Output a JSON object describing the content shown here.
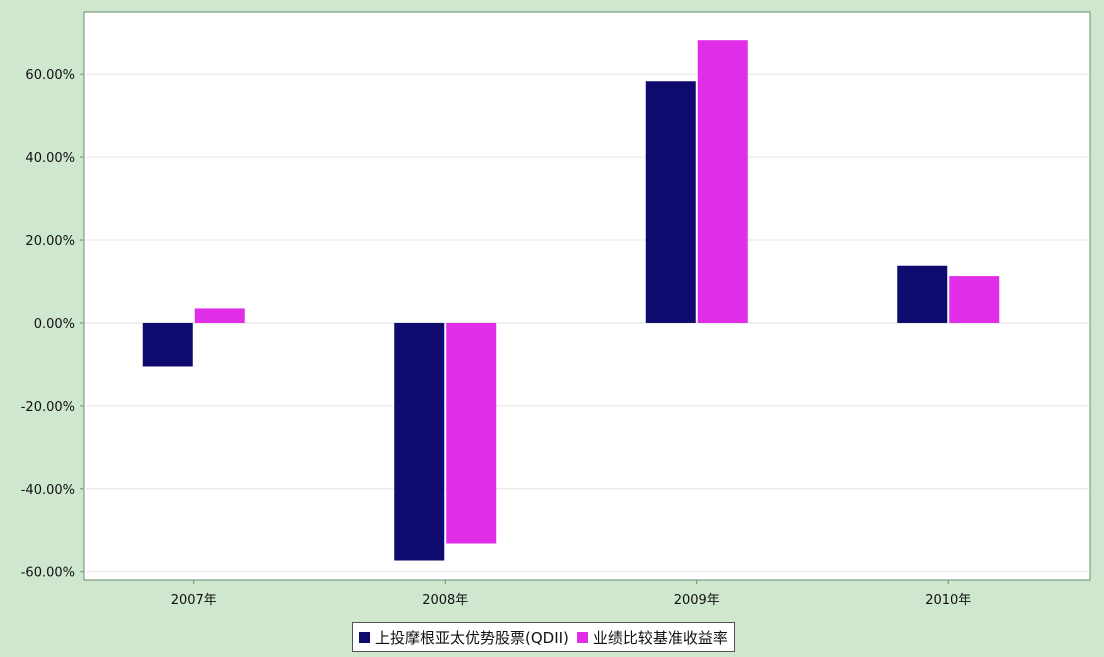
{
  "chart_data": {
    "type": "bar",
    "categories": [
      "2007年",
      "2008年",
      "2009年",
      "2010年"
    ],
    "series": [
      {
        "name": "上投摩根亚太优势股票(QDII)",
        "color": "#0f0a6e",
        "values": [
          -10.5,
          -57.3,
          58.3,
          13.8
        ]
      },
      {
        "name": "业绩比较基准收益率",
        "color": "#e02ee8",
        "values": [
          3.5,
          -53.2,
          68.2,
          11.3
        ]
      }
    ],
    "title": "",
    "xlabel": "",
    "ylabel": "",
    "ylim": [
      -62,
      75
    ],
    "yticks": [
      60,
      40,
      20,
      0,
      -20,
      -40,
      -60
    ],
    "ytick_labels": [
      "60.00%",
      "40.00%",
      "20.00%",
      "0.00%",
      "-20.00%",
      "-40.00%",
      "-60.00%"
    ],
    "grid": true,
    "legend_position": "bottom-center"
  }
}
